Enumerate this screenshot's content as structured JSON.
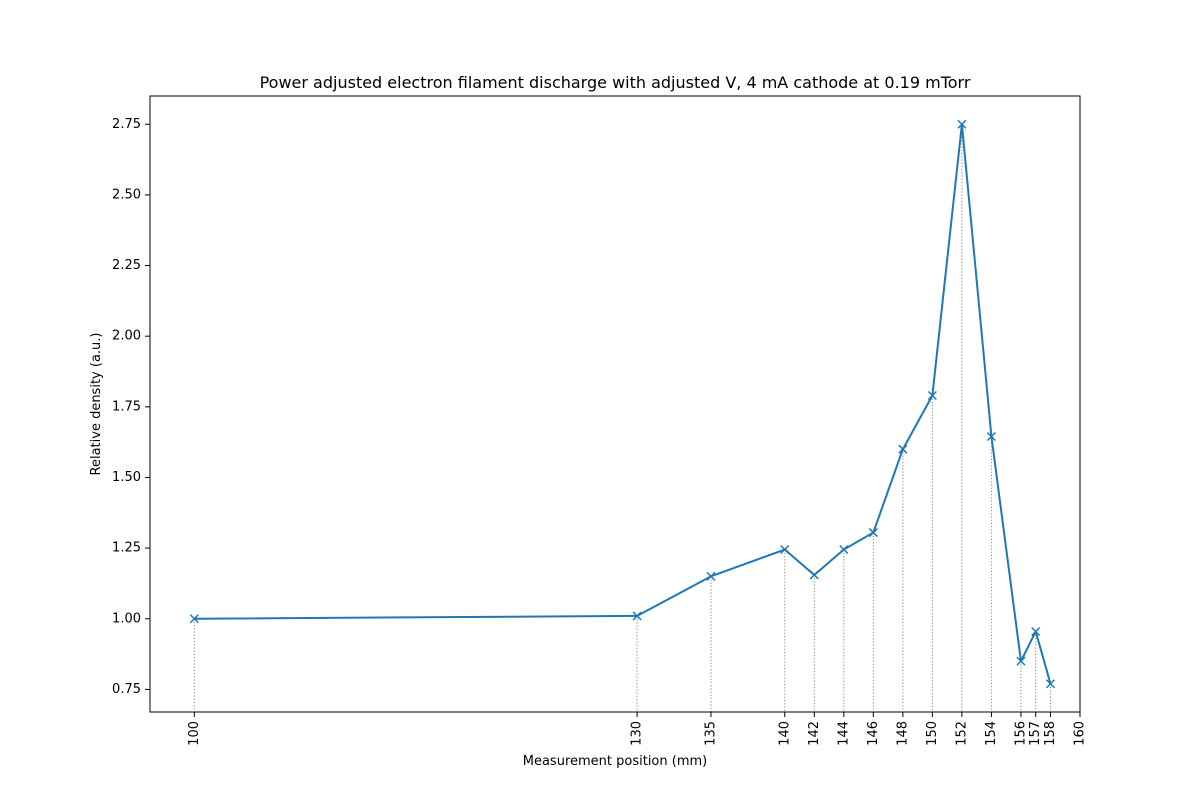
{
  "chart_data": {
    "type": "line",
    "title": "Power adjusted electron filament discharge with adjusted V, 4 mA cathode at 0.19 mTorr",
    "xlabel": "Measurement position (mm)",
    "ylabel": "Relative density (a.u.)",
    "xlim": [
      97,
      160
    ],
    "ylim": [
      0.67,
      2.85
    ],
    "x_ticks": [
      100,
      130,
      135,
      140,
      142,
      144,
      146,
      148,
      150,
      152,
      154,
      156,
      157,
      158,
      160
    ],
    "y_ticks": [
      0.75,
      1.0,
      1.25,
      1.5,
      1.75,
      2.0,
      2.25,
      2.5,
      2.75
    ],
    "grid": false,
    "marker": "x",
    "color": "#1f77b4",
    "dropline_color": "#808080",
    "series": [
      {
        "x": [
          100,
          130,
          135,
          140,
          142,
          144,
          146,
          148,
          150,
          152,
          154,
          156,
          157,
          158
        ],
        "y": [
          1.0,
          1.01,
          1.15,
          1.245,
          1.155,
          1.245,
          1.305,
          1.6,
          1.79,
          2.75,
          1.645,
          0.85,
          0.955,
          0.77
        ]
      }
    ]
  }
}
